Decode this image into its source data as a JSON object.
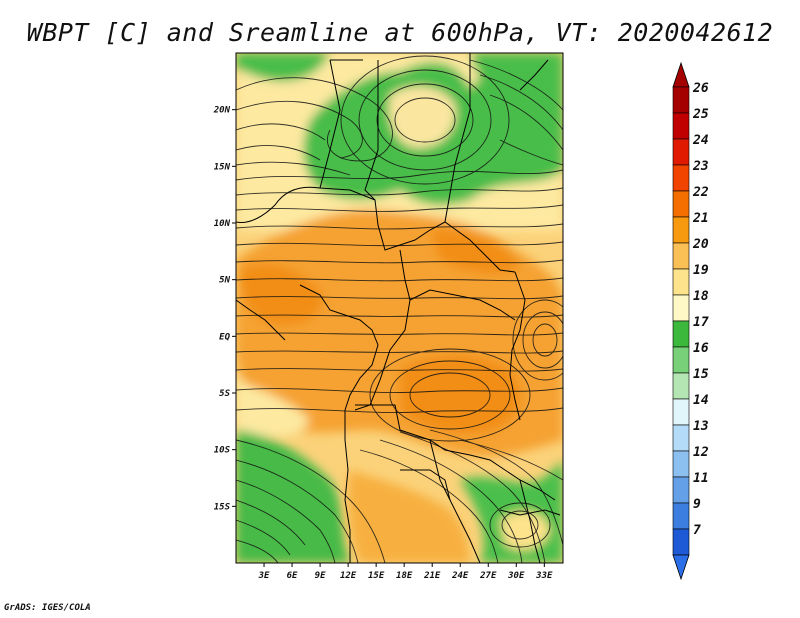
{
  "title": "WBPT [C] and Sreamline at 600hPa, VT: 2020042612",
  "credit": "GrADS: IGES/COLA",
  "map": {
    "lon_range": [
      0,
      35
    ],
    "lat_range": [
      -20,
      25
    ],
    "x_ticks": [
      {
        "value": 3,
        "label": "3E"
      },
      {
        "value": 6,
        "label": "6E"
      },
      {
        "value": 9,
        "label": "9E"
      },
      {
        "value": 12,
        "label": "12E"
      },
      {
        "value": 15,
        "label": "15E"
      },
      {
        "value": 18,
        "label": "18E"
      },
      {
        "value": 21,
        "label": "21E"
      },
      {
        "value": 24,
        "label": "24E"
      },
      {
        "value": 27,
        "label": "27E"
      },
      {
        "value": 30,
        "label": "30E"
      },
      {
        "value": 33,
        "label": "33E"
      }
    ],
    "y_ticks": [
      {
        "value": 20,
        "label": "20N"
      },
      {
        "value": 15,
        "label": "15N"
      },
      {
        "value": 10,
        "label": "10N"
      },
      {
        "value": 5,
        "label": "5N"
      },
      {
        "value": 0,
        "label": "EQ"
      },
      {
        "value": -5,
        "label": "5S"
      },
      {
        "value": -10,
        "label": "10S"
      },
      {
        "value": -15,
        "label": "15S"
      }
    ]
  },
  "colorbar": {
    "levels": [
      {
        "label": "26",
        "color": "#a50000"
      },
      {
        "label": "25",
        "color": "#c00000"
      },
      {
        "label": "24",
        "color": "#e01a00"
      },
      {
        "label": "23",
        "color": "#f04400"
      },
      {
        "label": "22",
        "color": "#f56f00"
      },
      {
        "label": "21",
        "color": "#f89a10"
      },
      {
        "label": "20",
        "color": "#fac055"
      },
      {
        "label": "19",
        "color": "#fde38c"
      },
      {
        "label": "18",
        "color": "#fdf8c5"
      },
      {
        "label": "17",
        "color": "#3cb83c"
      },
      {
        "label": "16",
        "color": "#78d078"
      },
      {
        "label": "15",
        "color": "#b4e6b4"
      },
      {
        "label": "14",
        "color": "#e1f6fa"
      },
      {
        "label": "13",
        "color": "#b4dcf8"
      },
      {
        "label": "12",
        "color": "#8cc0f0"
      },
      {
        "label": "11",
        "color": "#64a0e8"
      },
      {
        "label": "9",
        "color": "#3c7ee0"
      },
      {
        "label": "7",
        "color": "#1e5ad6"
      }
    ],
    "bottom_color": "#2a6ee8",
    "top_color": "#a50000"
  }
}
